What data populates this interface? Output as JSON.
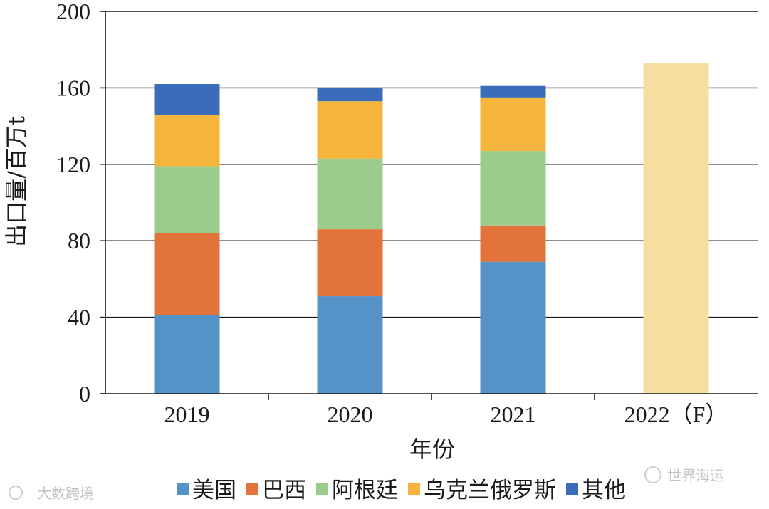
{
  "chart_data": {
    "type": "bar",
    "stacked": true,
    "categories": [
      "2019",
      "2020",
      "2021",
      "2022（F）"
    ],
    "series": [
      {
        "name": "美国",
        "color": "#5592c8",
        "values": [
          41,
          51,
          69,
          0
        ]
      },
      {
        "name": "巴西",
        "color": "#e2733a",
        "values": [
          43,
          35,
          19,
          0
        ]
      },
      {
        "name": "阿根廷",
        "color": "#9ccc8c",
        "values": [
          35,
          37,
          39,
          0
        ]
      },
      {
        "name": "乌克兰俄罗斯",
        "color": "#f5b43c",
        "values": [
          27,
          30,
          28,
          0
        ]
      },
      {
        "name": "其他",
        "color": "#3a6cba",
        "values": [
          16,
          7,
          6,
          0
        ]
      }
    ],
    "forecast": {
      "category": "2022（F）",
      "value": 173,
      "color": "#f5dea0"
    },
    "xlabel": "年份",
    "ylabel": "出口量/百万t",
    "ylim": [
      0,
      200
    ],
    "yticks": [
      0,
      40,
      80,
      120,
      160,
      200
    ],
    "grid": true,
    "legend_position": "bottom"
  },
  "watermarks": {
    "left": "大数跨境",
    "right": "世界海运"
  }
}
